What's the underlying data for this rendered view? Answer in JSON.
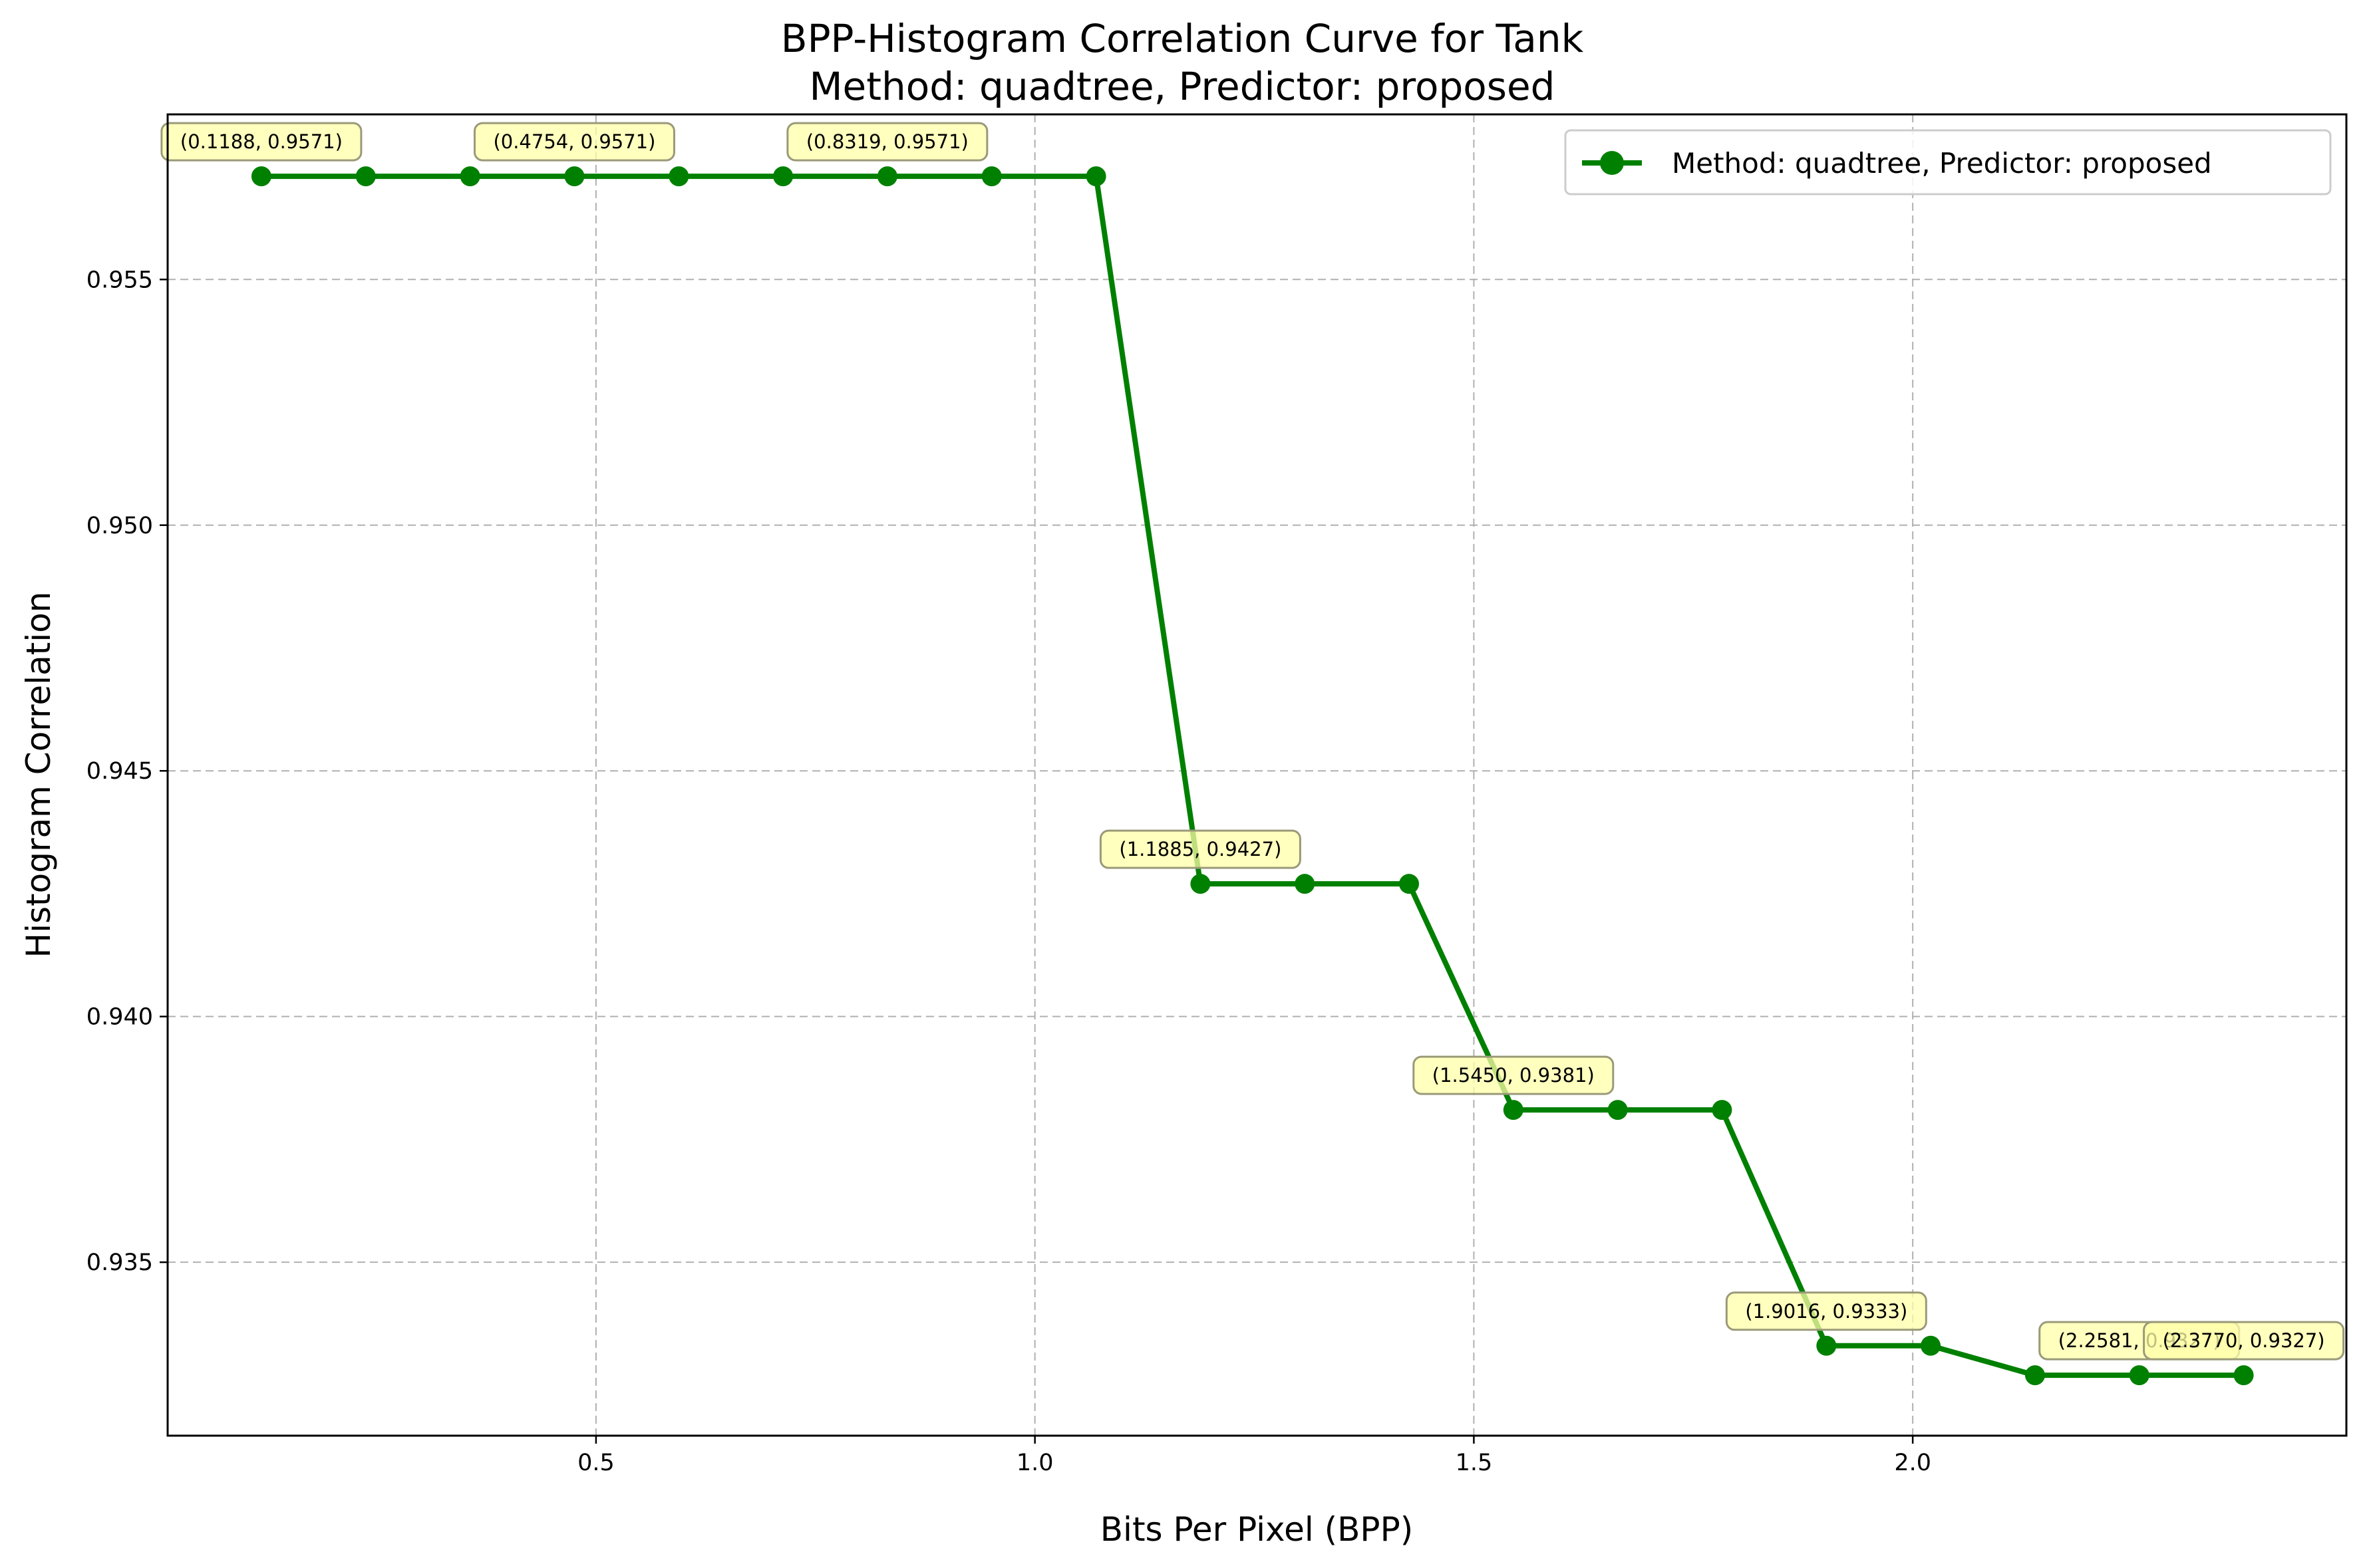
{
  "chart_data": {
    "type": "line",
    "title": "BPP-Histogram Correlation Curve for Tank",
    "subtitle": "Method: quadtree, Predictor: proposed",
    "xlabel": "Bits Per Pixel (BPP)",
    "ylabel": "Histogram Correlation",
    "xlim": [
      0.012,
      2.494
    ],
    "ylim": [
      0.93147,
      0.95836
    ],
    "xticks": [
      0.5,
      1.0,
      1.5,
      2.0
    ],
    "xtick_labels": [
      "0.5",
      "1.0",
      "1.5",
      "2.0"
    ],
    "yticks": [
      0.935,
      0.94,
      0.945,
      0.95,
      0.955
    ],
    "ytick_labels": [
      "0.935",
      "0.940",
      "0.945",
      "0.950",
      "0.955"
    ],
    "grid": true,
    "legend_position": "top-right",
    "series": [
      {
        "name": "Method: quadtree, Predictor: proposed",
        "color": "#008000",
        "marker": "circle",
        "x": [
          0.1188,
          0.2377,
          0.3566,
          0.4754,
          0.5943,
          0.7131,
          0.8319,
          0.9508,
          1.0697,
          1.1885,
          1.3074,
          1.4262,
          1.545,
          1.6639,
          1.7827,
          1.9016,
          2.0204,
          2.1393,
          2.2581,
          2.377
        ],
        "y": [
          0.9571,
          0.9571,
          0.9571,
          0.9571,
          0.9571,
          0.9571,
          0.9571,
          0.9571,
          0.9571,
          0.9427,
          0.9427,
          0.9427,
          0.9381,
          0.9381,
          0.9381,
          0.9333,
          0.9333,
          0.9327,
          0.9327,
          0.9327
        ]
      }
    ],
    "annotations": [
      {
        "x": 0.1188,
        "y": 0.9571,
        "text": "(0.1188, 0.9571)"
      },
      {
        "x": 0.4754,
        "y": 0.9571,
        "text": "(0.4754, 0.9571)"
      },
      {
        "x": 0.8319,
        "y": 0.9571,
        "text": "(0.8319, 0.9571)"
      },
      {
        "x": 1.1885,
        "y": 0.9427,
        "text": "(1.1885, 0.9427)"
      },
      {
        "x": 1.545,
        "y": 0.9381,
        "text": "(1.5450, 0.9381)"
      },
      {
        "x": 1.9016,
        "y": 0.9333,
        "text": "(1.9016, 0.9333)"
      },
      {
        "x": 2.2581,
        "y": 0.9327,
        "text": "(2.2581, 0.9327)"
      },
      {
        "x": 2.377,
        "y": 0.9327,
        "text": "(2.3770, 0.9327)"
      }
    ],
    "colors": {
      "line": "#008000",
      "grid": "#b0b0b0",
      "annotation_fill": "#ffffa8",
      "annotation_border": "#9a9a7a"
    }
  }
}
